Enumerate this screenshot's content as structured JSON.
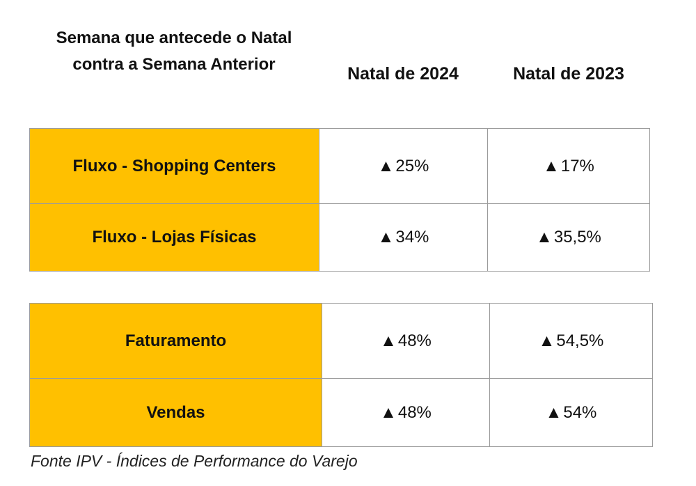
{
  "chart_data": {
    "type": "table",
    "title": "Semana que antecede o Natal\ncontra a Semana Anterior",
    "columns": [
      "Natal de 2024",
      "Natal de 2023"
    ],
    "groups": [
      {
        "rows": [
          {
            "label": "Fluxo - Shopping Centers",
            "values": [
              "25%",
              "17%"
            ],
            "numeric": [
              25,
              17
            ]
          },
          {
            "label": "Fluxo - Lojas Físicas",
            "values": [
              "34%",
              "35,5%"
            ],
            "numeric": [
              34,
              35.5
            ]
          }
        ]
      },
      {
        "rows": [
          {
            "label": "Faturamento",
            "values": [
              "48%",
              "54,5%"
            ],
            "numeric": [
              48,
              54.5
            ]
          },
          {
            "label": "Vendas",
            "values": [
              "48%",
              "54%"
            ],
            "numeric": [
              48,
              54
            ]
          }
        ]
      }
    ],
    "direction": "up",
    "direction_symbol": "▲",
    "label_color": "#ffc000"
  },
  "footer": {
    "source": "Fonte IPV - Índices de Performance do Varejo"
  }
}
